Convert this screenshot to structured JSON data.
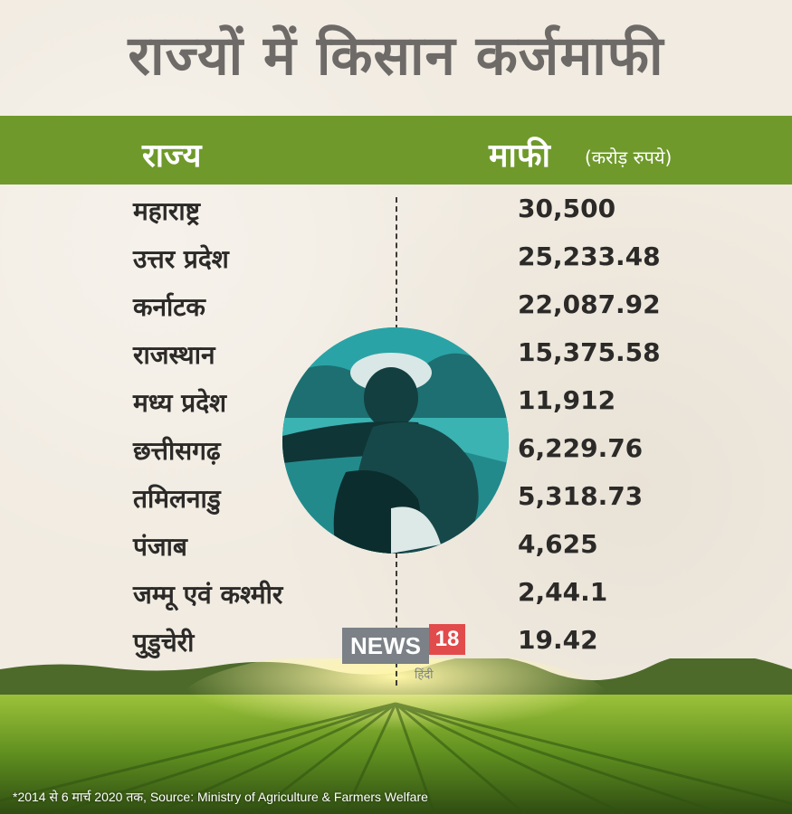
{
  "title": "राज्यों में किसान कर्जमाफी",
  "header": {
    "state_label": "राज्य",
    "amount_label": "माफी",
    "unit_label": "(करोड़ रुपये)"
  },
  "rows": [
    {
      "state": "महाराष्ट्र",
      "amount": "30,500"
    },
    {
      "state": "उत्तर प्रदेश",
      "amount": "25,233.48"
    },
    {
      "state": "कर्नाटक",
      "amount": "22,087.92"
    },
    {
      "state": "राजस्थान",
      "amount": "15,375.58"
    },
    {
      "state": "मध्य प्रदेश",
      "amount": "11,912"
    },
    {
      "state": "छत्तीसगढ़",
      "amount": "6,229.76"
    },
    {
      "state": "तमिलनाडु",
      "amount": "5,318.73"
    },
    {
      "state": "पंजाब",
      "amount": "4,625"
    },
    {
      "state": "जम्मू एवं कश्मीर",
      "amount": "2,44.1"
    },
    {
      "state": "पुडुचेरी",
      "amount": "19.42"
    }
  ],
  "logo": {
    "news": "NEWS",
    "number": "18",
    "sub": "हिंदी"
  },
  "footnote": "*2014 से 6 मार्च 2020 तक, Source: Ministry of Agriculture & Farmers Welfare",
  "colors": {
    "header_green": "#6f9a2b",
    "title_gray": "#6d6a67",
    "portrait_teal": "#2aa3a6",
    "logo_red": "#e24b4b"
  },
  "images": [
    "farmer-portrait",
    "crop-field"
  ]
}
